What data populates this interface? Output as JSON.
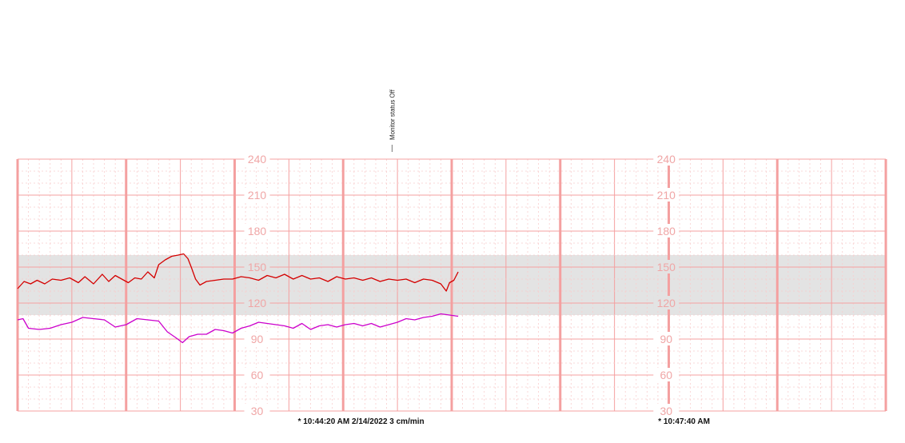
{
  "chart_data": {
    "type": "line",
    "title": "",
    "xlabel": "",
    "ylabel": "",
    "ylim": [
      30,
      240
    ],
    "y_ticks": [
      240,
      210,
      180,
      150,
      120,
      90,
      60,
      30
    ],
    "normal_band": [
      110,
      160
    ],
    "grid": true,
    "colors": {
      "grid_major": "#f4a0a0",
      "grid_minor": "#f8cdcd",
      "band": "#e3e3e3",
      "series_1": "#d40000",
      "series_2": "#cc00cc"
    },
    "x_minutes_total": 8,
    "series": [
      {
        "color_key": "series_1",
        "points": [
          [
            0.0,
            132
          ],
          [
            0.06,
            138
          ],
          [
            0.12,
            136
          ],
          [
            0.18,
            139
          ],
          [
            0.25,
            136
          ],
          [
            0.32,
            140
          ],
          [
            0.4,
            139
          ],
          [
            0.48,
            141
          ],
          [
            0.56,
            137
          ],
          [
            0.62,
            142
          ],
          [
            0.7,
            136
          ],
          [
            0.78,
            144
          ],
          [
            0.84,
            138
          ],
          [
            0.9,
            143
          ],
          [
            0.96,
            140
          ],
          [
            1.02,
            137
          ],
          [
            1.08,
            141
          ],
          [
            1.14,
            140
          ],
          [
            1.2,
            146
          ],
          [
            1.26,
            141
          ],
          [
            1.3,
            152
          ],
          [
            1.36,
            156
          ],
          [
            1.42,
            159
          ],
          [
            1.48,
            160
          ],
          [
            1.53,
            161
          ],
          [
            1.57,
            157
          ],
          [
            1.6,
            150
          ],
          [
            1.64,
            140
          ],
          [
            1.68,
            135
          ],
          [
            1.74,
            138
          ],
          [
            1.82,
            139
          ],
          [
            1.9,
            140
          ],
          [
            1.98,
            140
          ],
          [
            2.06,
            142
          ],
          [
            2.14,
            141
          ],
          [
            2.22,
            139
          ],
          [
            2.3,
            143
          ],
          [
            2.38,
            141
          ],
          [
            2.46,
            144
          ],
          [
            2.54,
            140
          ],
          [
            2.62,
            143
          ],
          [
            2.7,
            140
          ],
          [
            2.78,
            141
          ],
          [
            2.86,
            138
          ],
          [
            2.94,
            142
          ],
          [
            3.02,
            140
          ],
          [
            3.1,
            141
          ],
          [
            3.18,
            139
          ],
          [
            3.26,
            141
          ],
          [
            3.34,
            138
          ],
          [
            3.42,
            140
          ],
          [
            3.5,
            139
          ],
          [
            3.58,
            140
          ],
          [
            3.66,
            137
          ],
          [
            3.74,
            140
          ],
          [
            3.82,
            139
          ],
          [
            3.9,
            136
          ],
          [
            3.95,
            130
          ],
          [
            3.98,
            137
          ],
          [
            4.02,
            139
          ],
          [
            4.06,
            146
          ]
        ]
      },
      {
        "color_key": "series_2",
        "points": [
          [
            0.0,
            106
          ],
          [
            0.05,
            107
          ],
          [
            0.1,
            99
          ],
          [
            0.2,
            98
          ],
          [
            0.3,
            99
          ],
          [
            0.4,
            102
          ],
          [
            0.5,
            104
          ],
          [
            0.6,
            108
          ],
          [
            0.7,
            107
          ],
          [
            0.8,
            106
          ],
          [
            0.9,
            100
          ],
          [
            1.0,
            102
          ],
          [
            1.1,
            107
          ],
          [
            1.2,
            106
          ],
          [
            1.3,
            105
          ],
          [
            1.38,
            96
          ],
          [
            1.46,
            91
          ],
          [
            1.52,
            87
          ],
          [
            1.58,
            92
          ],
          [
            1.66,
            94
          ],
          [
            1.74,
            94
          ],
          [
            1.82,
            98
          ],
          [
            1.9,
            97
          ],
          [
            1.98,
            95
          ],
          [
            2.06,
            99
          ],
          [
            2.14,
            101
          ],
          [
            2.22,
            104
          ],
          [
            2.3,
            103
          ],
          [
            2.38,
            102
          ],
          [
            2.46,
            101
          ],
          [
            2.54,
            99
          ],
          [
            2.62,
            103
          ],
          [
            2.7,
            98
          ],
          [
            2.78,
            101
          ],
          [
            2.86,
            102
          ],
          [
            2.94,
            100
          ],
          [
            3.02,
            102
          ],
          [
            3.1,
            103
          ],
          [
            3.18,
            101
          ],
          [
            3.26,
            103
          ],
          [
            3.34,
            100
          ],
          [
            3.42,
            102
          ],
          [
            3.5,
            104
          ],
          [
            3.58,
            107
          ],
          [
            3.66,
            106
          ],
          [
            3.74,
            108
          ],
          [
            3.82,
            109
          ],
          [
            3.9,
            111
          ],
          [
            3.98,
            110
          ],
          [
            4.06,
            109
          ]
        ]
      }
    ],
    "time_marks": [
      {
        "text": "* 10:44:20 AM  2/14/2022  3 cm/min",
        "minute": 2.45,
        "y_label_column": 2
      },
      {
        "text": "* 10:47:40 AM",
        "minute": 5.77,
        "y_label_column": 5.77
      }
    ],
    "annotations": [
      {
        "text": "Monitor status Off",
        "minute": 3.45
      }
    ]
  }
}
